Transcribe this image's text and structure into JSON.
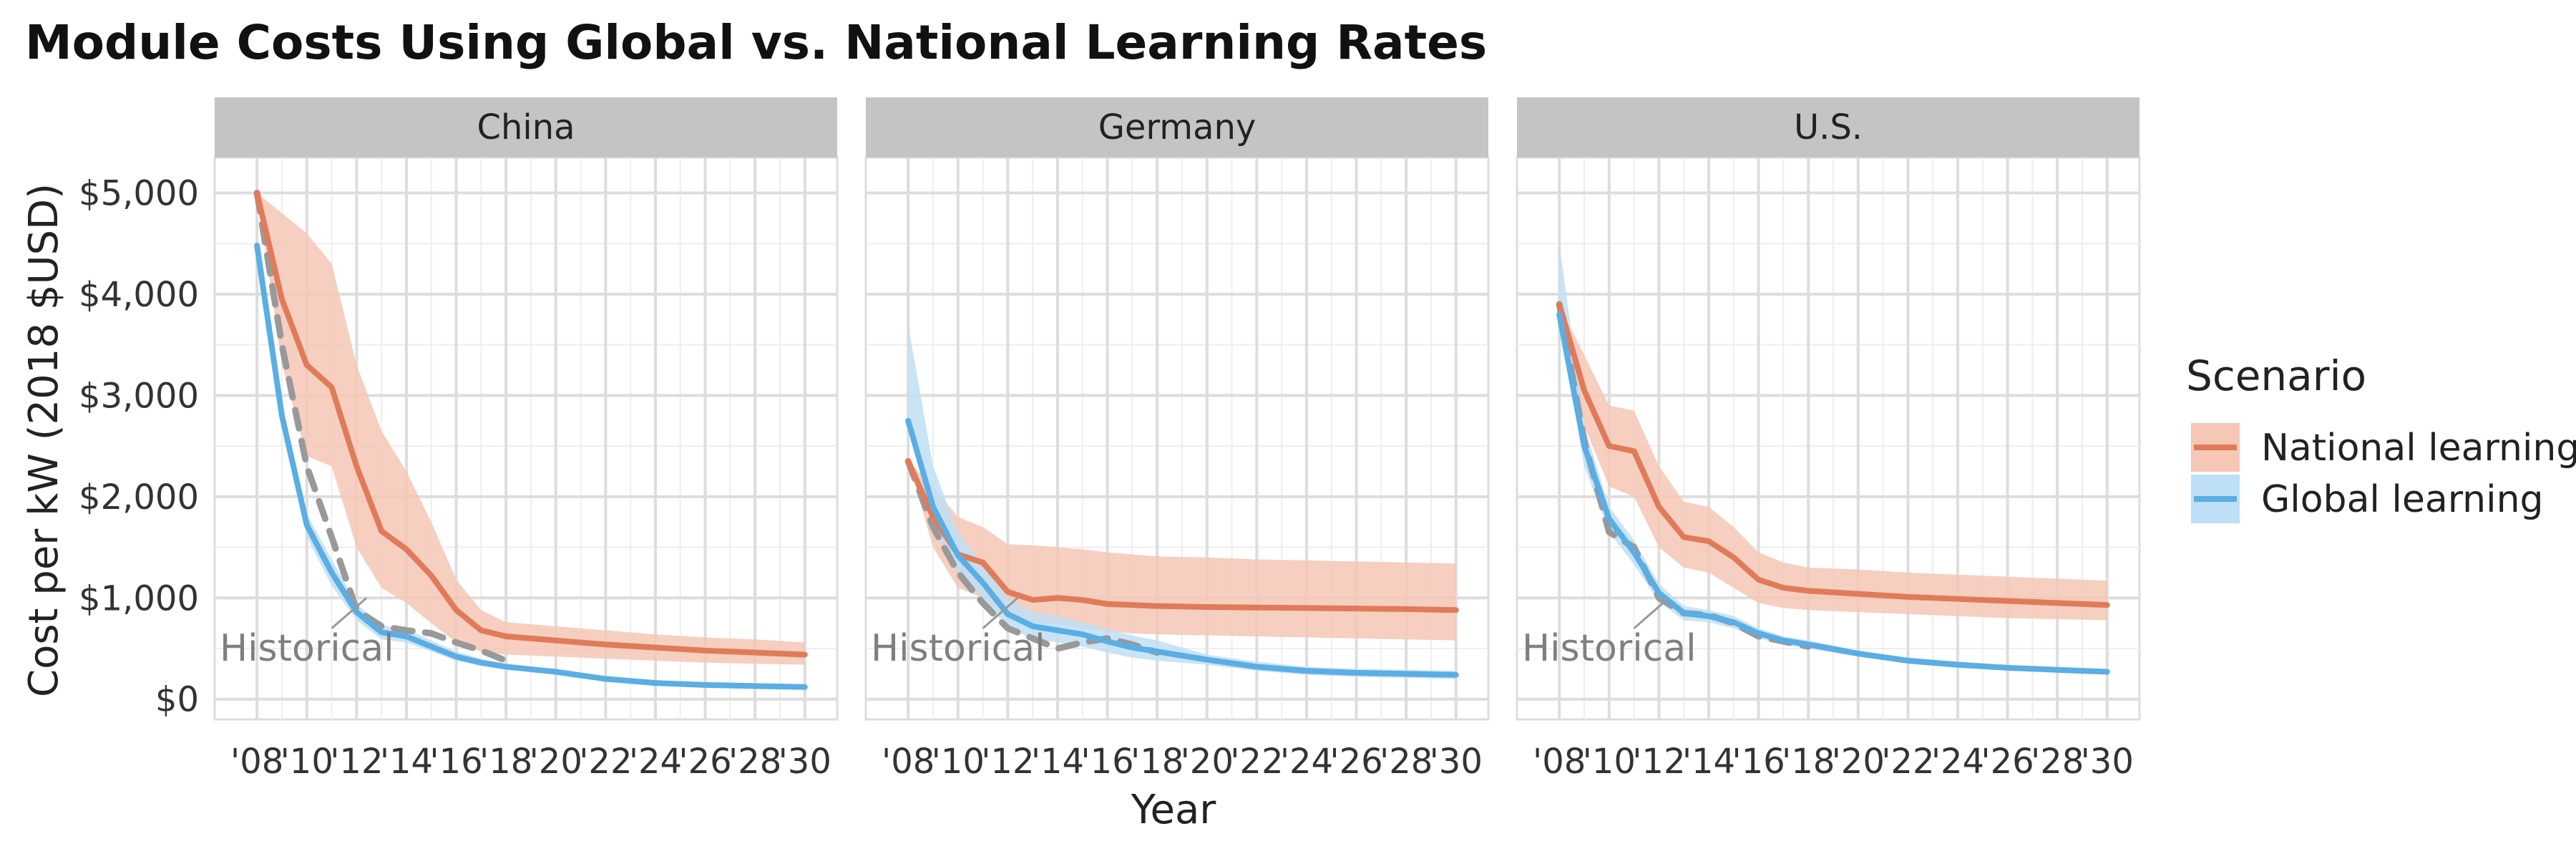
{
  "title": "Module Costs Using Global vs. National Learning Rates",
  "axes": {
    "xlabel": "Year",
    "ylabel": "Cost per kW (2018 $USD)",
    "ylim": [
      -200,
      5350
    ],
    "xlim": [
      2006.3,
      2031.3
    ],
    "yticks": [
      0,
      1000,
      2000,
      3000,
      4000,
      5000
    ],
    "ytick_labels": [
      "$0",
      "$1,000",
      "$2,000",
      "$3,000",
      "$4,000",
      "$5,000"
    ],
    "xticks": [
      2008,
      2010,
      2012,
      2014,
      2016,
      2018,
      2020,
      2022,
      2024,
      2026,
      2028,
      2030
    ],
    "xtick_labels": [
      "'08",
      "'10",
      "'12",
      "'14",
      "'16",
      "'18",
      "'20",
      "'22",
      "'24",
      "'26",
      "'28",
      "'30"
    ]
  },
  "legend": {
    "title": "Scenario",
    "position": "right",
    "items": [
      {
        "label": "National learning",
        "color": "#E07B5A",
        "band": "#F5C7B5"
      },
      {
        "label": "Global learning",
        "color": "#5AAEE3",
        "band": "#BEDFF5"
      }
    ]
  },
  "colors": {
    "national": "#E07B5A",
    "national_band": "#F5C7B5",
    "global": "#5AAEE3",
    "global_band": "#BEDFF5",
    "historical": "#999999",
    "strip": "#C4C4C4",
    "grid": "#DDDDDD"
  },
  "chart_data": {
    "type": "line",
    "facets": [
      {
        "name": "China",
        "annotation": "Historical",
        "series": [
          {
            "name": "National learning",
            "x": [
              2008,
              2009,
              2010,
              2011,
              2012,
              2013,
              2014,
              2015,
              2016,
              2017,
              2018,
              2020,
              2022,
              2024,
              2026,
              2028,
              2030
            ],
            "y": [
              5000,
              3950,
              3300,
              3080,
              2300,
              1660,
              1480,
              1220,
              880,
              680,
              620,
              580,
              540,
              510,
              480,
              460,
              440
            ],
            "lower": [
              5000,
              3300,
              2400,
              2300,
              1500,
              1100,
              950,
              750,
              560,
              470,
              440,
              420,
              400,
              380,
              360,
              350,
              340
            ],
            "upper": [
              5000,
              4800,
              4600,
              4300,
              3300,
              2650,
              2250,
              1750,
              1180,
              880,
              760,
              720,
              680,
              640,
              610,
              590,
              560
            ]
          },
          {
            "name": "Global learning",
            "x": [
              2008,
              2009,
              2010,
              2011,
              2012,
              2013,
              2014,
              2015,
              2016,
              2017,
              2018,
              2020,
              2022,
              2024,
              2026,
              2028,
              2030
            ],
            "y": [
              4480,
              2800,
              1720,
              1250,
              860,
              660,
              620,
              520,
              420,
              360,
              320,
              270,
              200,
              160,
              140,
              130,
              120
            ],
            "lower": [
              4480,
              2700,
              1600,
              1120,
              780,
              590,
              560,
              470,
              380,
              330,
              300,
              260,
              190,
              150,
              130,
              120,
              110
            ],
            "upper": [
              4480,
              2900,
              1830,
              1380,
              940,
              730,
              690,
              580,
              470,
              400,
              350,
              290,
              215,
              175,
              155,
              145,
              135
            ]
          },
          {
            "name": "Historical",
            "x": [
              2008,
              2009,
              2010,
              2011,
              2012,
              2013,
              2014,
              2015,
              2016,
              2017,
              2018
            ],
            "y": [
              5000,
              3500,
              2300,
              1600,
              880,
              720,
              680,
              650,
              560,
              480,
              380
            ]
          }
        ]
      },
      {
        "name": "Germany",
        "annotation": "Historical",
        "series": [
          {
            "name": "National learning",
            "x": [
              2008,
              2009,
              2010,
              2011,
              2012,
              2013,
              2014,
              2015,
              2016,
              2017,
              2018,
              2020,
              2022,
              2024,
              2026,
              2028,
              2030
            ],
            "y": [
              2350,
              1800,
              1430,
              1350,
              1060,
              980,
              1000,
              980,
              940,
              930,
              920,
              910,
              905,
              900,
              895,
              890,
              880
            ],
            "lower": [
              2350,
              1500,
              1100,
              1000,
              800,
              750,
              740,
              700,
              670,
              650,
              640,
              630,
              620,
              610,
              600,
              590,
              580
            ],
            "upper": [
              2350,
              2100,
              1800,
              1700,
              1530,
              1520,
              1500,
              1480,
              1450,
              1430,
              1410,
              1400,
              1380,
              1370,
              1360,
              1350,
              1340
            ]
          },
          {
            "name": "Global learning",
            "x": [
              2008,
              2009,
              2010,
              2011,
              2012,
              2013,
              2014,
              2015,
              2016,
              2017,
              2018,
              2020,
              2022,
              2024,
              2026,
              2028,
              2030
            ],
            "y": [
              2750,
              1900,
              1420,
              1150,
              840,
              720,
              680,
              640,
              570,
              510,
              470,
              390,
              320,
              280,
              260,
              250,
              240
            ],
            "lower": [
              2750,
              1700,
              1250,
              1000,
              700,
              600,
              560,
              520,
              460,
              410,
              380,
              340,
              280,
              240,
              220,
              210,
              200
            ],
            "upper": [
              3700,
              2300,
              1650,
              1330,
              1000,
              860,
              820,
              760,
              690,
              630,
              580,
              440,
              370,
              320,
              300,
              290,
              280
            ]
          },
          {
            "name": "Historical",
            "x": [
              2008,
              2009,
              2010,
              2011,
              2012,
              2013,
              2014,
              2015,
              2016,
              2017,
              2018
            ],
            "y": [
              2350,
              1700,
              1250,
              950,
              700,
              600,
              500,
              560,
              600,
              540,
              460
            ]
          }
        ]
      },
      {
        "name": "U.S.",
        "annotation": "Historical",
        "series": [
          {
            "name": "National learning",
            "x": [
              2008,
              2009,
              2010,
              2011,
              2012,
              2013,
              2014,
              2015,
              2016,
              2017,
              2018,
              2020,
              2022,
              2024,
              2026,
              2028,
              2030
            ],
            "y": [
              3900,
              3050,
              2500,
              2450,
              1900,
              1600,
              1560,
              1400,
              1180,
              1100,
              1070,
              1040,
              1010,
              990,
              970,
              950,
              930
            ],
            "lower": [
              3900,
              2700,
              2100,
              2000,
              1500,
              1300,
              1250,
              1100,
              950,
              900,
              880,
              860,
              840,
              820,
              800,
              790,
              780
            ],
            "upper": [
              3900,
              3400,
              2900,
              2850,
              2300,
              1950,
              1900,
              1700,
              1450,
              1350,
              1300,
              1280,
              1250,
              1230,
              1210,
              1190,
              1170
            ]
          },
          {
            "name": "Global learning",
            "x": [
              2008,
              2009,
              2010,
              2011,
              2012,
              2013,
              2014,
              2015,
              2016,
              2017,
              2018,
              2020,
              2022,
              2024,
              2026,
              2028,
              2030
            ],
            "y": [
              3800,
              2500,
              1780,
              1450,
              1050,
              850,
              820,
              760,
              650,
              580,
              540,
              450,
              380,
              340,
              310,
              290,
              270
            ],
            "lower": [
              3800,
              2300,
              1650,
              1330,
              960,
              780,
              760,
              700,
              600,
              540,
              500,
              420,
              350,
              310,
              285,
              265,
              250
            ],
            "upper": [
              4500,
              2700,
              1900,
              1570,
              1140,
              920,
              880,
              820,
              700,
              620,
              580,
              480,
              410,
              370,
              335,
              315,
              295
            ]
          },
          {
            "name": "Historical",
            "x": [
              2008,
              2009,
              2010,
              2011,
              2012,
              2013,
              2014,
              2015,
              2016,
              2017,
              2018
            ],
            "y": [
              3900,
              2550,
              1650,
              1500,
              1000,
              850,
              830,
              750,
              620,
              570,
              520
            ]
          }
        ]
      }
    ]
  }
}
